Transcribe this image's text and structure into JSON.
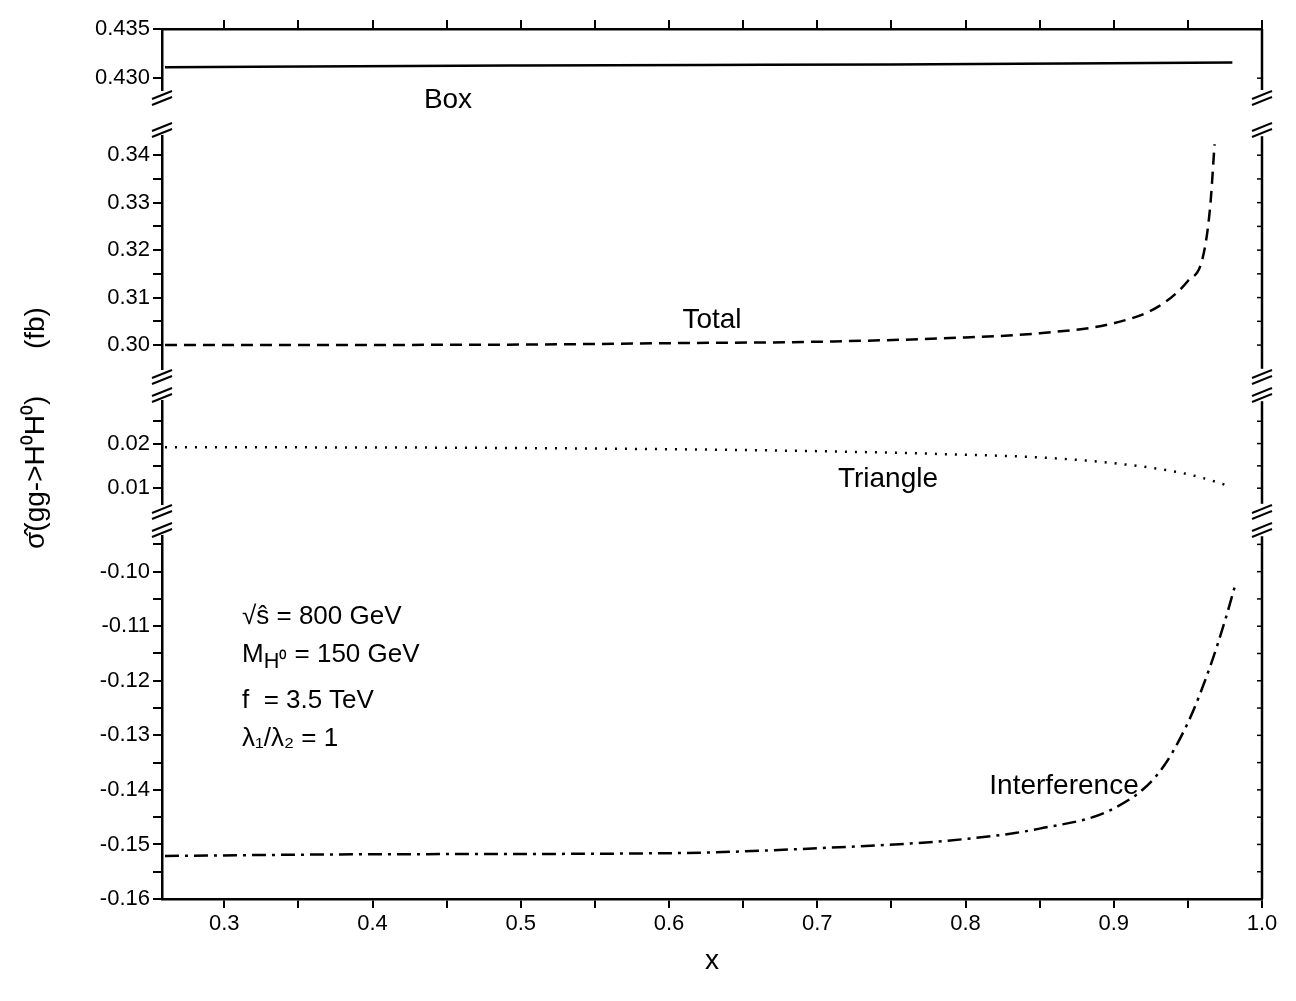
{
  "chart_data": [
    {
      "type": "line",
      "xlim": [
        0.258,
        1.0
      ],
      "xticks": [
        0.3,
        0.35,
        0.4,
        0.45,
        0.5,
        0.55,
        0.6,
        0.65,
        0.7,
        0.75,
        0.8,
        0.85,
        0.9,
        0.95,
        1.0
      ],
      "ylim": [
        0.4288,
        0.435
      ],
      "yticks": [
        {
          "value": 0.43,
          "label": "0.430"
        },
        {
          "value": 0.435,
          "label": "0.435"
        }
      ],
      "tick_labels": "y",
      "x": [
        0.26,
        0.5,
        0.75,
        0.98
      ],
      "series": [
        {
          "name": "Box",
          "color": "#000000",
          "line_style": "solid",
          "values": [
            0.4311,
            0.4313,
            0.4314,
            0.4316
          ]
        }
      ]
    },
    {
      "type": "line",
      "xlim": [
        0.258,
        1.0
      ],
      "ylim": [
        0.295,
        0.344
      ],
      "yticks": [
        {
          "value": 0.3,
          "label": "0.30"
        },
        {
          "value": 0.305,
          "label": null
        },
        {
          "value": 0.31,
          "label": "0.31"
        },
        {
          "value": 0.315,
          "label": null
        },
        {
          "value": 0.32,
          "label": "0.32"
        },
        {
          "value": 0.325,
          "label": null
        },
        {
          "value": 0.33,
          "label": "0.33"
        },
        {
          "value": 0.335,
          "label": null
        },
        {
          "value": 0.34,
          "label": "0.34"
        }
      ],
      "tick_labels": "y",
      "x": [
        0.26,
        0.5,
        0.6,
        0.7,
        0.8,
        0.85,
        0.9,
        0.93,
        0.95,
        0.96,
        0.965,
        0.968
      ],
      "series": [
        {
          "name": "Total",
          "color": "#000000",
          "line_style": "dashed",
          "values": [
            0.3,
            0.3001,
            0.3004,
            0.3007,
            0.3016,
            0.3025,
            0.3046,
            0.3081,
            0.3135,
            0.3184,
            0.329,
            0.3423
          ]
        }
      ]
    },
    {
      "type": "line",
      "xlim": [
        0.258,
        1.0
      ],
      "ylim": [
        0.0065,
        0.0295
      ],
      "yticks": [
        {
          "value": 0.01,
          "label": "0.01"
        },
        {
          "value": 0.015,
          "label": null
        },
        {
          "value": 0.02,
          "label": "0.02"
        },
        {
          "value": 0.025,
          "label": null
        }
      ],
      "tick_labels": "y",
      "ylabel": "σ̂(gg->H⁰H⁰)      (fb)",
      "x": [
        0.26,
        0.5,
        0.7,
        0.8,
        0.85,
        0.9,
        0.94,
        0.96,
        0.975
      ],
      "series": [
        {
          "name": "Triangle",
          "color": "#000000",
          "line_style": "dotted",
          "values": [
            0.0192,
            0.019,
            0.0183,
            0.0175,
            0.0169,
            0.0156,
            0.0138,
            0.0123,
            0.0108
          ]
        }
      ]
    },
    {
      "type": "line",
      "xlim": [
        0.258,
        1.0
      ],
      "xticks": [
        {
          "value": 0.3,
          "label": "0.3"
        },
        {
          "value": 0.35,
          "label": null
        },
        {
          "value": 0.4,
          "label": "0.4"
        },
        {
          "value": 0.45,
          "label": null
        },
        {
          "value": 0.5,
          "label": "0.5"
        },
        {
          "value": 0.55,
          "label": null
        },
        {
          "value": 0.6,
          "label": "0.6"
        },
        {
          "value": 0.65,
          "label": null
        },
        {
          "value": 0.7,
          "label": "0.7"
        },
        {
          "value": 0.75,
          "label": null
        },
        {
          "value": 0.8,
          "label": "0.8"
        },
        {
          "value": 0.85,
          "label": null
        },
        {
          "value": 0.9,
          "label": "0.9"
        },
        {
          "value": 0.95,
          "label": null
        },
        {
          "value": 1.0,
          "label": "1.0"
        }
      ],
      "ylim": [
        -0.16,
        -0.0935
      ],
      "yticks": [
        {
          "value": -0.16,
          "label": "-0.16"
        },
        {
          "value": -0.155,
          "label": null
        },
        {
          "value": -0.15,
          "label": "-0.15"
        },
        {
          "value": -0.145,
          "label": null
        },
        {
          "value": -0.14,
          "label": "-0.14"
        },
        {
          "value": -0.135,
          "label": null
        },
        {
          "value": -0.13,
          "label": "-0.13"
        },
        {
          "value": -0.125,
          "label": null
        },
        {
          "value": -0.12,
          "label": "-0.12"
        },
        {
          "value": -0.115,
          "label": null
        },
        {
          "value": -0.11,
          "label": "-0.11"
        },
        {
          "value": -0.105,
          "label": null
        },
        {
          "value": -0.1,
          "label": "-0.10"
        },
        {
          "value": -0.095,
          "label": null
        }
      ],
      "xlabel": "x",
      "annotations": [
        "√ŝ = 800 GeV",
        "M$_{H⁰}$ = 150 GeV",
        "f  = 3.5 TeV",
        "λ₁/λ₂ = 1"
      ],
      "x": [
        0.26,
        0.4,
        0.6,
        0.7,
        0.8,
        0.85,
        0.9,
        0.93,
        0.95,
        0.965,
        0.975,
        0.982
      ],
      "series": [
        {
          "name": "Interference",
          "color": "#000000",
          "line_style": "dashdot",
          "values": [
            -0.1521,
            -0.1518,
            -0.1516,
            -0.1507,
            -0.149,
            -0.1471,
            -0.1434,
            -0.137,
            -0.1277,
            -0.1174,
            -0.109,
            -0.1024
          ]
        }
      ]
    }
  ]
}
